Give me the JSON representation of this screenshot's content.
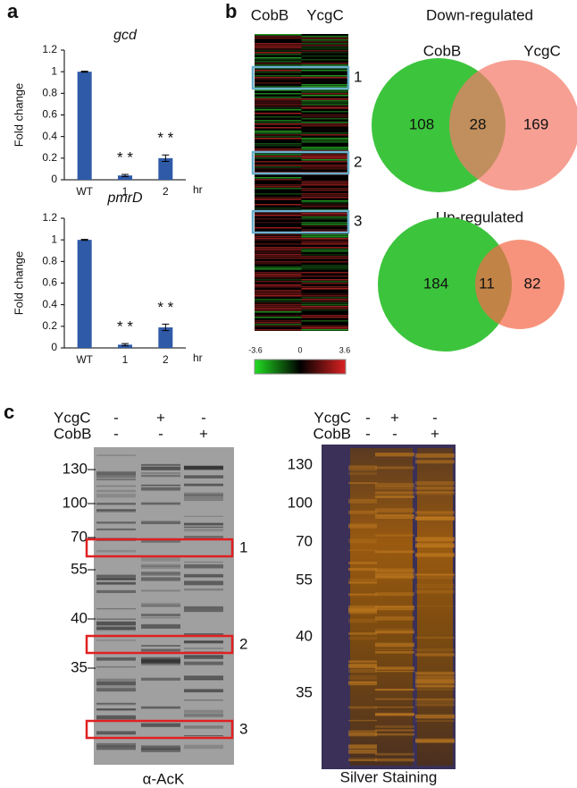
{
  "panel_letters": [
    "a",
    "b",
    "c"
  ],
  "chart_data": [
    {
      "type": "bar",
      "title": "gcd",
      "ylabel": "Fold change",
      "xlabel": "hr",
      "categories": [
        "WT",
        "1",
        "2"
      ],
      "values": [
        1,
        0.04,
        0.2
      ],
      "errors": [
        0.005,
        0.01,
        0.03
      ],
      "significance": [
        null,
        "* *",
        "* *"
      ],
      "color": "#2f5aa8",
      "ylim": [
        0,
        1.2
      ],
      "yticks": [
        0,
        0.2,
        0.4,
        0.6,
        0.8,
        1,
        1.2
      ]
    },
    {
      "type": "bar",
      "title": "pmrD",
      "ylabel": "Fold change",
      "xlabel": "hr",
      "categories": [
        "WT",
        "1",
        "2"
      ],
      "values": [
        1,
        0.03,
        0.19
      ],
      "errors": [
        0.005,
        0.01,
        0.03
      ],
      "significance": [
        null,
        "* *",
        "* *"
      ],
      "color": "#2f5aa8",
      "ylim": [
        0,
        1.2
      ],
      "yticks": [
        0,
        0.2,
        0.4,
        0.6,
        0.8,
        1,
        1.2
      ]
    }
  ],
  "heatmap": {
    "columns": [
      "CobB",
      "YcgC"
    ],
    "boxes": [
      "1",
      "2",
      "3"
    ],
    "scale": [
      "-3.6",
      "0",
      "3.6"
    ]
  },
  "venn": [
    {
      "title": "Down-regulated",
      "sets": [
        "CobB",
        "YcgC"
      ],
      "counts": [
        "108",
        "28",
        "169"
      ]
    },
    {
      "title": "Up-regulated",
      "counts": [
        "184",
        "11",
        "82"
      ]
    }
  ],
  "blots": [
    {
      "rows": [
        {
          "label": "YcgC",
          "signs": [
            "-",
            "+",
            "-"
          ]
        },
        {
          "label": "CobB",
          "signs": [
            "-",
            "-",
            "+"
          ]
        }
      ],
      "markers": [
        "130",
        "100",
        "70",
        "55",
        "40",
        "35"
      ],
      "boxes": [
        "1",
        "2",
        "3"
      ],
      "caption": "α-AcK"
    },
    {
      "rows": [
        {
          "label": "YcgC",
          "signs": [
            "-",
            "+",
            "-"
          ]
        },
        {
          "label": "CobB",
          "signs": [
            "-",
            "-",
            "+"
          ]
        }
      ],
      "markers": [
        "130",
        "100",
        "70",
        "55",
        "40",
        "35"
      ],
      "caption": "Silver Staining"
    }
  ]
}
